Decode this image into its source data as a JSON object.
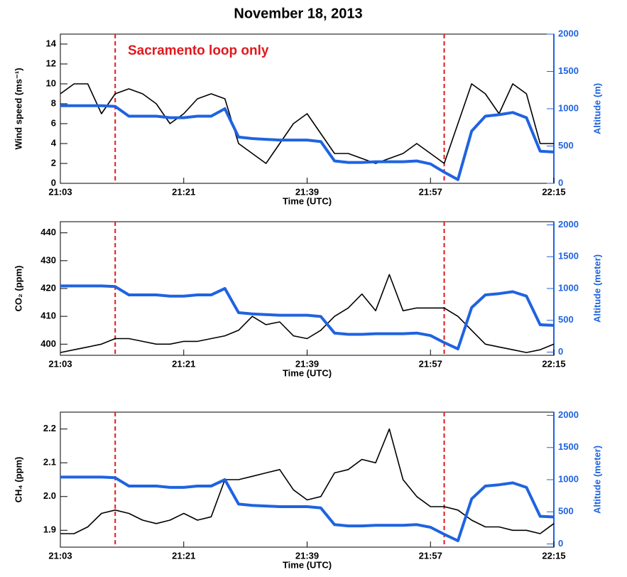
{
  "chart_data": [
    {
      "type": "line",
      "title": "November 18, 2013",
      "annotation": "Sacramento loop only",
      "xlabel": "Time (UTC)",
      "ylabel": "Wind speed (ms⁻¹)",
      "y2label": "Altitude (m)",
      "x": [
        "21:03",
        "21:05",
        "21:07",
        "21:09",
        "21:11",
        "21:13",
        "21:15",
        "21:17",
        "21:19",
        "21:21",
        "21:23",
        "21:25",
        "21:27",
        "21:29",
        "21:31",
        "21:33",
        "21:35",
        "21:37",
        "21:39",
        "21:41",
        "21:43",
        "21:45",
        "21:47",
        "21:49",
        "21:51",
        "21:53",
        "21:55",
        "21:57",
        "21:59",
        "22:01",
        "22:03",
        "22:05",
        "22:07",
        "22:09",
        "22:11",
        "22:13",
        "22:15"
      ],
      "xlim": [
        "21:03",
        "22:15"
      ],
      "xticks": [
        "21:03",
        "21:21",
        "21:39",
        "21:57",
        "22:15"
      ],
      "vlines": [
        "21:11",
        "21:59"
      ],
      "vline_color": "#e0191e",
      "ylim": [
        0,
        15
      ],
      "yticks": [
        0,
        2,
        4,
        6,
        8,
        10,
        12,
        14
      ],
      "y2lim": [
        0,
        2000
      ],
      "y2ticks": [
        0,
        500,
        1000,
        1500,
        2000
      ],
      "series": [
        {
          "name": "Wind speed",
          "color": "#000000",
          "values": [
            9,
            10,
            10,
            7,
            9,
            9.5,
            9,
            8,
            6,
            7,
            8.5,
            9,
            8.5,
            4,
            3,
            2,
            4,
            6,
            7,
            5,
            3,
            3,
            2.5,
            2,
            2.5,
            3,
            4,
            3,
            2,
            6,
            10,
            9,
            7,
            10,
            9,
            4,
            4
          ]
        },
        {
          "name": "Altitude",
          "axis": "y2",
          "color": "#1f63e0",
          "values": [
            1040,
            1040,
            1040,
            1040,
            1030,
            900,
            900,
            900,
            880,
            880,
            900,
            900,
            1000,
            620,
            600,
            590,
            580,
            580,
            580,
            560,
            300,
            280,
            280,
            290,
            290,
            290,
            300,
            260,
            150,
            50,
            700,
            900,
            920,
            950,
            880,
            430,
            420
          ]
        }
      ]
    },
    {
      "type": "line",
      "xlabel": "Time (UTC)",
      "ylabel": "CO₂ (ppm)",
      "y2label": "Altitude (meter)",
      "x": [
        "21:03",
        "21:05",
        "21:07",
        "21:09",
        "21:11",
        "21:13",
        "21:15",
        "21:17",
        "21:19",
        "21:21",
        "21:23",
        "21:25",
        "21:27",
        "21:29",
        "21:31",
        "21:33",
        "21:35",
        "21:37",
        "21:39",
        "21:41",
        "21:43",
        "21:45",
        "21:47",
        "21:49",
        "21:51",
        "21:53",
        "21:55",
        "21:57",
        "21:59",
        "22:01",
        "22:03",
        "22:05",
        "22:07",
        "22:09",
        "22:11",
        "22:13",
        "22:15"
      ],
      "xlim": [
        "21:03",
        "22:15"
      ],
      "xticks": [
        "21:03",
        "21:21",
        "21:39",
        "21:57",
        "22:15"
      ],
      "vlines": [
        "21:11",
        "21:59"
      ],
      "vline_color": "#e0191e",
      "ylim": [
        396,
        444
      ],
      "yticks": [
        400,
        410,
        420,
        430,
        440
      ],
      "y2lim": [
        -50,
        2050
      ],
      "y2ticks": [
        0,
        500,
        1000,
        1500,
        2000
      ],
      "series": [
        {
          "name": "CO2",
          "color": "#000000",
          "values": [
            397,
            398,
            399,
            400,
            402,
            402,
            401,
            400,
            400,
            401,
            401,
            402,
            403,
            405,
            410,
            407,
            408,
            403,
            402,
            405,
            410,
            413,
            418,
            412,
            425,
            412,
            413,
            413,
            413,
            410,
            405,
            400,
            399,
            398,
            397,
            398,
            400
          ]
        },
        {
          "name": "Altitude",
          "axis": "y2",
          "color": "#1f63e0",
          "values": [
            1040,
            1040,
            1040,
            1040,
            1030,
            900,
            900,
            900,
            880,
            880,
            900,
            900,
            1000,
            620,
            600,
            590,
            580,
            580,
            580,
            560,
            300,
            280,
            280,
            290,
            290,
            290,
            300,
            260,
            150,
            50,
            700,
            900,
            920,
            950,
            880,
            430,
            420
          ]
        }
      ]
    },
    {
      "type": "line",
      "xlabel": "Time (UTC)",
      "ylabel": "CH₄ (ppm)",
      "y2label": "Altitude (meter)",
      "x": [
        "21:03",
        "21:05",
        "21:07",
        "21:09",
        "21:11",
        "21:13",
        "21:15",
        "21:17",
        "21:19",
        "21:21",
        "21:23",
        "21:25",
        "21:27",
        "21:29",
        "21:31",
        "21:33",
        "21:35",
        "21:37",
        "21:39",
        "21:41",
        "21:43",
        "21:45",
        "21:47",
        "21:49",
        "21:51",
        "21:53",
        "21:55",
        "21:57",
        "21:59",
        "22:01",
        "22:03",
        "22:05",
        "22:07",
        "22:09",
        "22:11",
        "22:13",
        "22:15"
      ],
      "xlim": [
        "21:03",
        "22:15"
      ],
      "xticks": [
        "21:03",
        "21:21",
        "21:39",
        "21:57",
        "22:15"
      ],
      "vlines": [
        "21:11",
        "21:59"
      ],
      "vline_color": "#e0191e",
      "ylim": [
        1.85,
        2.25
      ],
      "yticks": [
        1.9,
        {
          "value": 2,
          "label": "2.0"
        },
        2.1,
        2.2
      ],
      "y2lim": [
        -50,
        2050
      ],
      "y2ticks": [
        0,
        500,
        1000,
        1500,
        2000
      ],
      "series": [
        {
          "name": "CH4",
          "color": "#000000",
          "values": [
            1.89,
            1.89,
            1.91,
            1.95,
            1.96,
            1.95,
            1.93,
            1.92,
            1.93,
            1.95,
            1.93,
            1.94,
            2.05,
            2.05,
            2.06,
            2.07,
            2.08,
            2.02,
            1.99,
            2.0,
            2.07,
            2.08,
            2.11,
            2.1,
            2.2,
            2.05,
            2.0,
            1.97,
            1.97,
            1.96,
            1.93,
            1.91,
            1.91,
            1.9,
            1.9,
            1.89,
            1.92
          ]
        },
        {
          "name": "Altitude",
          "axis": "y2",
          "color": "#1f63e0",
          "values": [
            1040,
            1040,
            1040,
            1040,
            1030,
            900,
            900,
            900,
            880,
            880,
            900,
            900,
            1000,
            620,
            600,
            590,
            580,
            580,
            580,
            560,
            300,
            280,
            280,
            290,
            290,
            290,
            300,
            260,
            150,
            50,
            700,
            900,
            920,
            950,
            880,
            430,
            420
          ]
        }
      ]
    }
  ]
}
